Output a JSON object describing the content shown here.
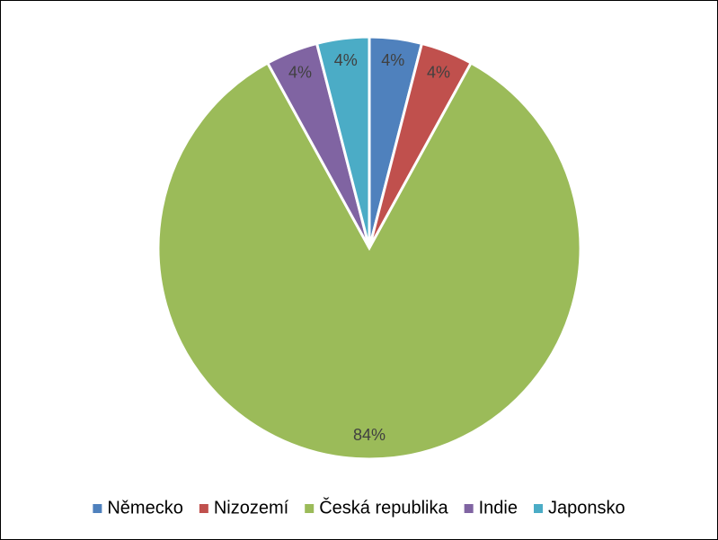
{
  "chart_data": {
    "type": "pie",
    "categories": [
      "Německo",
      "Nizozemí",
      "Česká republika",
      "Indie",
      "Japonsko"
    ],
    "values": [
      4,
      4,
      84,
      4,
      4
    ],
    "value_labels": [
      "4%",
      "4%",
      "84%",
      "4%",
      "4%"
    ],
    "colors": [
      "#4f81bd",
      "#c0504d",
      "#9bbb59",
      "#8064a2",
      "#4bacc6"
    ],
    "legend": "bottom"
  }
}
